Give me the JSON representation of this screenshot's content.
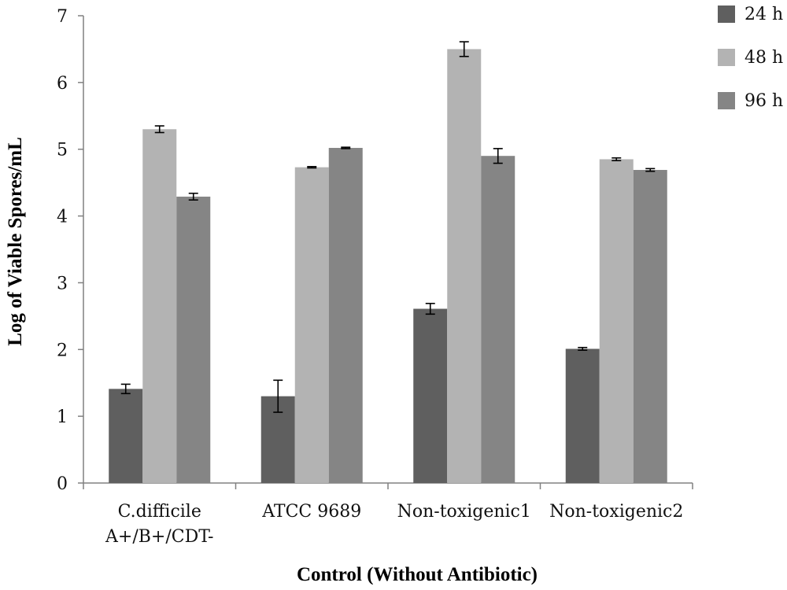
{
  "chart_data": {
    "type": "bar",
    "title": "",
    "xlabel": "Control (Without Antibiotic)",
    "ylabel": "Log of Viable Spores/mL",
    "ylim": [
      0,
      7
    ],
    "yticks": [
      "0",
      "1",
      "2",
      "3",
      "4",
      "5",
      "6",
      "7"
    ],
    "categories": [
      [
        "C.difficile",
        "A+/B+/CDT-"
      ],
      [
        "ATCC 9689"
      ],
      [
        "Non-toxigenic1"
      ],
      [
        "Non-toxigenic2"
      ]
    ],
    "series": [
      {
        "name": "24 h",
        "color": "#5f5f5f",
        "values": [
          1.41,
          1.3,
          2.61,
          2.01
        ],
        "errors": [
          0.07,
          0.24,
          0.08,
          0.02
        ]
      },
      {
        "name": "48 h",
        "color": "#b3b3b3",
        "values": [
          5.3,
          4.73,
          6.5,
          4.85
        ],
        "errors": [
          0.05,
          0.01,
          0.11,
          0.02
        ]
      },
      {
        "name": "96 h",
        "color": "#858585",
        "values": [
          4.29,
          5.02,
          4.9,
          4.69
        ],
        "errors": [
          0.05,
          0.01,
          0.11,
          0.02
        ]
      }
    ],
    "grid": false,
    "legend_position": "top-right"
  }
}
